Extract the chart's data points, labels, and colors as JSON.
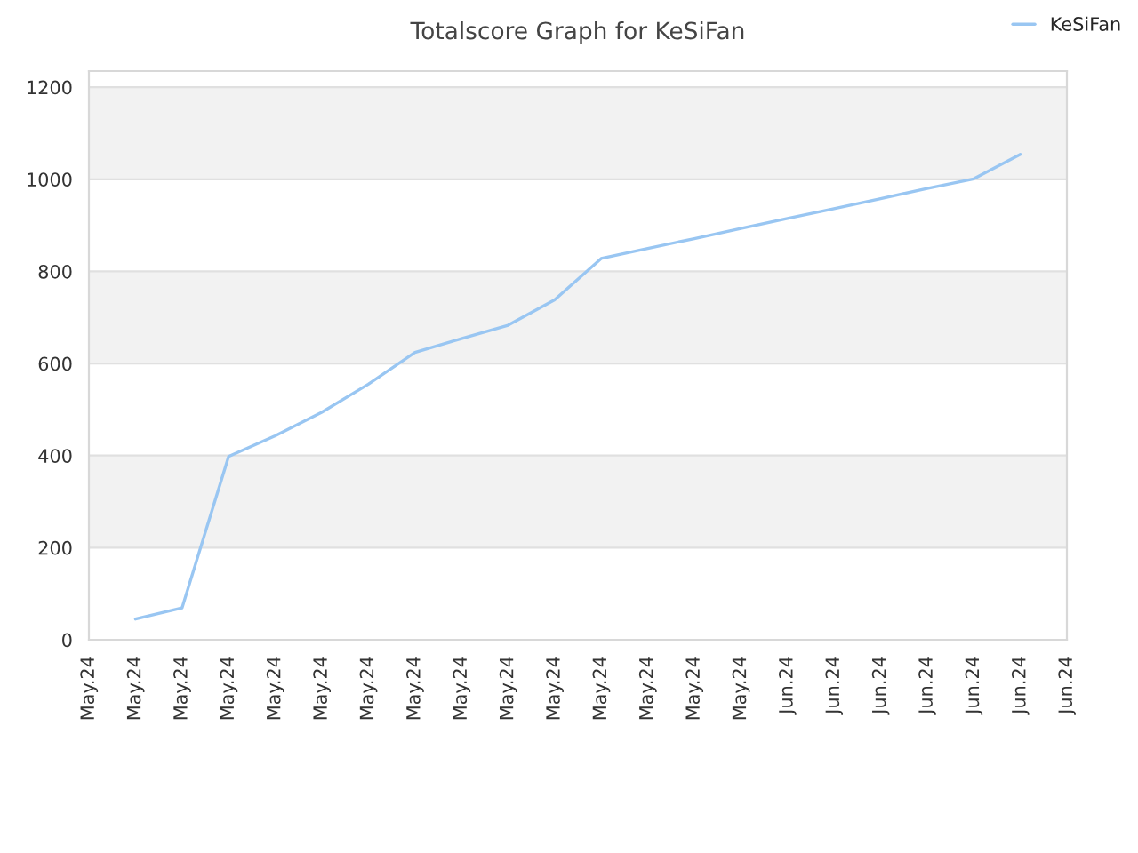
{
  "chart_data": {
    "type": "line",
    "title": "Totalscore Graph for KeSiFan",
    "categories": [
      "May.24",
      "May.24",
      "May.24",
      "May.24",
      "May.24",
      "May.24",
      "May.24",
      "May.24",
      "May.24",
      "May.24",
      "May.24",
      "May.24",
      "May.24",
      "May.24",
      "May.24",
      "Jun.24",
      "Jun.24",
      "Jun.24",
      "Jun.24",
      "Jun.24",
      "Jun.24",
      "Jun.24"
    ],
    "series": [
      {
        "name": "KeSiFan",
        "color": "#99c6f2",
        "values": [
          null,
          45,
          69,
          398,
          443,
          494,
          555,
          624,
          654,
          683,
          738,
          828,
          850,
          871,
          893,
          915,
          936,
          958,
          980,
          1001,
          1054,
          null
        ]
      }
    ],
    "ylim": [
      0,
      1235
    ],
    "yticks": [
      0,
      200,
      400,
      600,
      800,
      1000,
      1200
    ],
    "grid": "y",
    "legend": "top right",
    "marker": "none",
    "line_style": "solid"
  }
}
